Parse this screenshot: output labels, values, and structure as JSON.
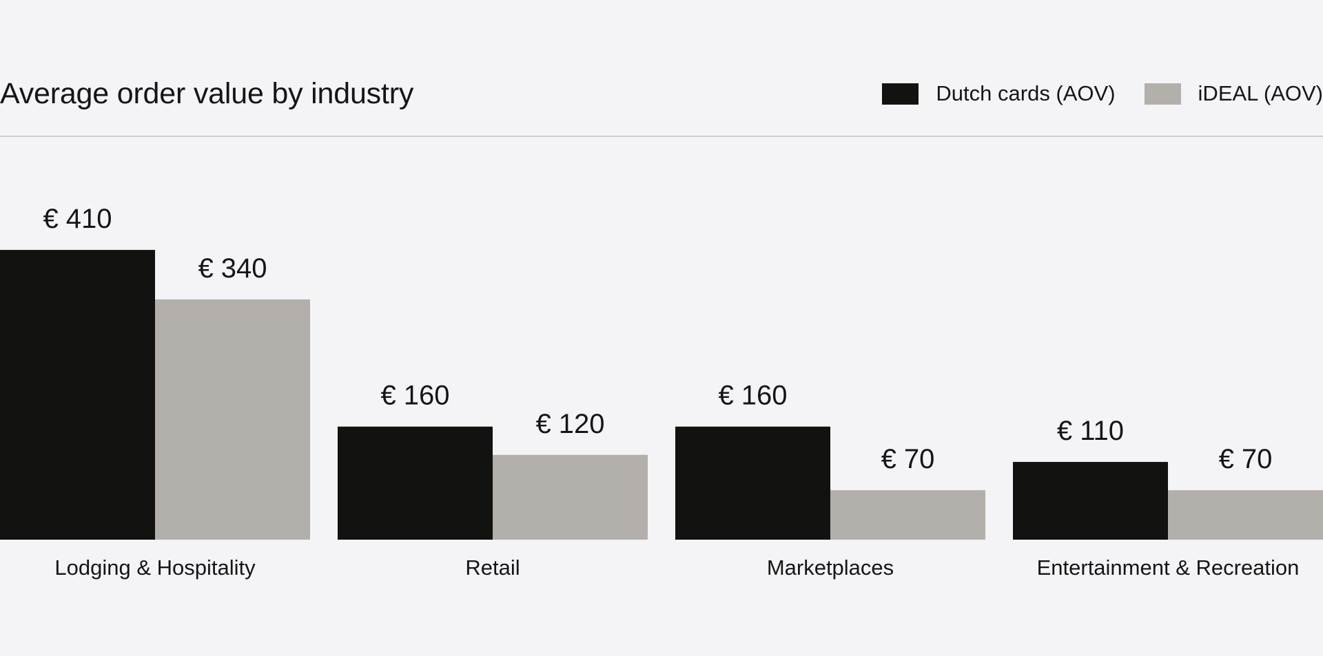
{
  "chart_data": {
    "type": "bar",
    "title": "Average order value by industry",
    "xlabel": "",
    "ylabel": "",
    "ylim": [
      0,
      450
    ],
    "grid": false,
    "legend_position": "top-right",
    "value_prefix": "€ ",
    "categories": [
      "Lodging & Hospitality",
      "Retail",
      "Marketplaces",
      "Entertainment & Recreation"
    ],
    "series": [
      {
        "name": "Dutch cards (AOV)",
        "color": "#121210",
        "values": [
          410,
          160,
          160,
          110
        ]
      },
      {
        "name": "iDEAL (AOV)",
        "color": "#b3b0ab",
        "values": [
          340,
          120,
          70,
          70
        ]
      }
    ]
  }
}
